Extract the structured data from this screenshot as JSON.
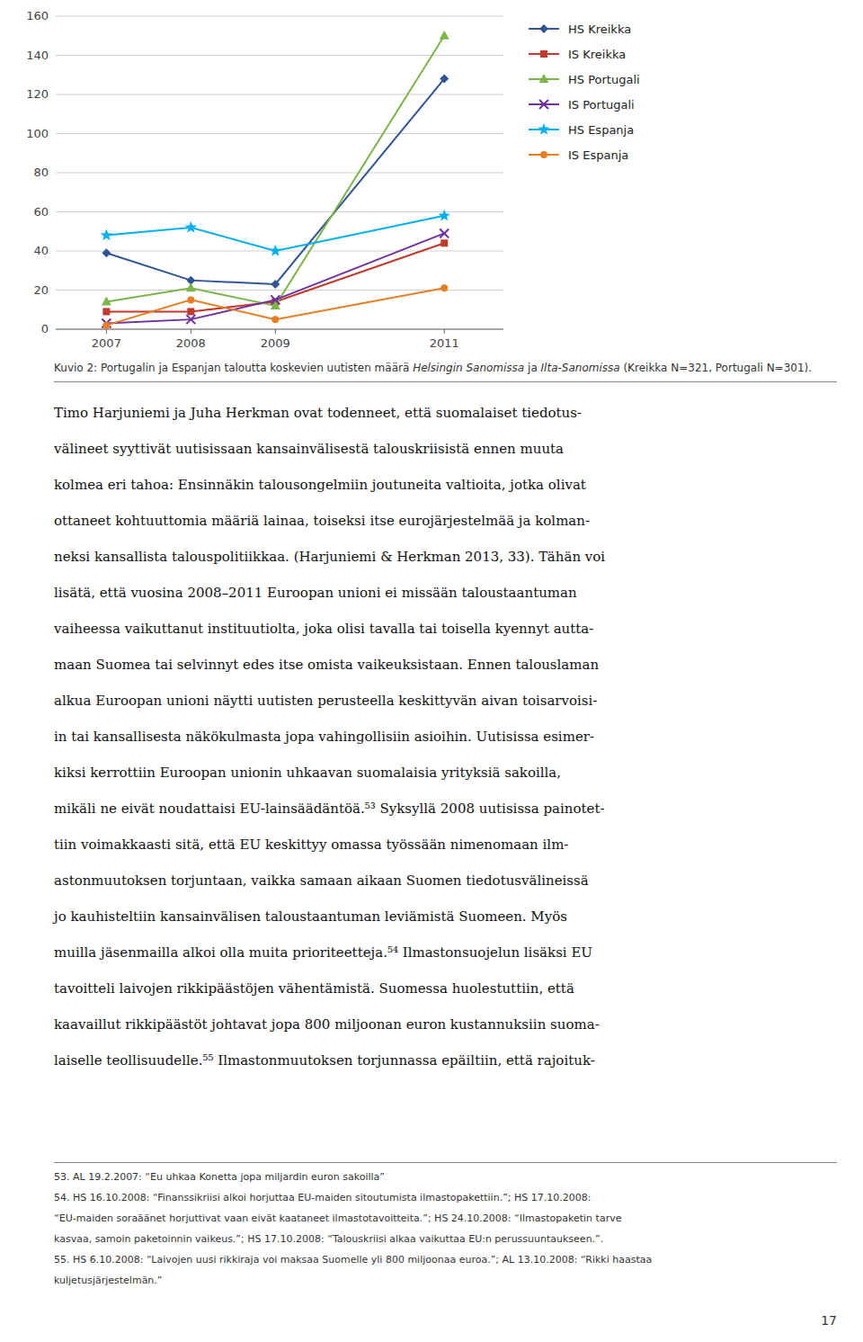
{
  "chart_data": {
    "type": "line",
    "x": [
      2007,
      2008,
      2009,
      2011
    ],
    "xlim": [
      2006.4,
      2011.7
    ],
    "xticks": [
      2007,
      2008,
      2009,
      2011
    ],
    "ylim": [
      0,
      160
    ],
    "yticks": [
      0,
      20,
      40,
      60,
      80,
      100,
      120,
      140,
      160
    ],
    "grid": true,
    "legend": "right",
    "series": [
      {
        "name": "HS Kreikka",
        "color": "#2F5597",
        "marker": "diamond",
        "values": [
          39,
          25,
          23,
          128
        ]
      },
      {
        "name": "IS Kreikka",
        "color": "#C0392B",
        "marker": "square",
        "values": [
          9,
          9,
          14,
          44
        ]
      },
      {
        "name": "HS Portugali",
        "color": "#7AB648",
        "marker": "triangle",
        "values": [
          14,
          21,
          12,
          150
        ]
      },
      {
        "name": "IS Portugali",
        "color": "#7030A0",
        "marker": "x",
        "values": [
          3,
          5,
          15,
          49
        ]
      },
      {
        "name": "HS Espanja",
        "color": "#00B0F0",
        "marker": "star",
        "values": [
          48,
          52,
          40,
          58
        ]
      },
      {
        "name": "IS Espanja",
        "color": "#E67E22",
        "marker": "circle",
        "values": [
          2,
          15,
          5,
          21
        ]
      }
    ]
  },
  "caption": [
    "Kuvio 2: Portugalin ja Espanjan taloutta koskevien uutisten määrä ",
    "Helsingin Sanomissa",
    " ja ",
    "Ilta-Sanomissa",
    " (Kreikka N=321, Portugali N=301)."
  ],
  "body_lines": [
    "Timo Harjuniemi ja Juha Herkman ovat todenneet, että suomalaiset tiedotus-",
    "välineet syyttivät uutisissaan kansainvälisestä talouskriisistä ennen muuta",
    "kolmea eri tahoa: Ensinnäkin talousongelmiin joutuneita valtioita, jotka olivat",
    "ottaneet kohtuuttomia määriä lainaa, toiseksi itse eurojärjestelmää ja kolman-",
    "neksi kansallista talouspolitiikkaa. (Harjuniemi & Herkman 2013, 33). Tähän voi",
    "lisätä, että vuosina 2008–2011 Euroopan unioni ei missään taloustaantuman",
    "vaiheessa vaikuttanut instituutiolta, joka olisi tavalla tai toisella kyennyt autta-",
    "maan Suomea tai selvinnyt edes itse omista vaikeuksistaan. Ennen talouslaman",
    "alkua Euroopan unioni näytti uutisten perusteella keskittyvän aivan toisarvoisi-",
    "in tai kansallisesta näkökulmasta jopa vahingollisiin asioihin. Uutisissa esimer-",
    "kiksi kerrottiin Euroopan unionin uhkaavan suomalaisia yrityksiä sakoilla,",
    "mikäli ne eivät noudattaisi EU-lainsäädäntöä.⁵³ Syksyllä 2008 uutisissa painotet-",
    "tiin voimakkaasti sitä, että EU keskittyy omassa työssään nimenomaan ilm-",
    "astonmuutoksen torjuntaan, vaikka samaan aikaan Suomen tiedotusvälineissä",
    "jo kauhisteltiin kansainvälisen taloustaantuman leviämistä Suomeen. Myös",
    "muilla jäsenmailla alkoi olla muita prioriteetteja.⁵⁴ Ilmastonsuojelun lisäksi EU",
    "tavoitteli laivojen rikkipäästöjen vähentämistä. Suomessa huolestuttiin, että",
    "kaavaillut rikkipäästöt johtavat jopa 800 miljoonan euron kustannuksiin suoma-",
    "laiselle teollisuudelle.⁵⁵ Ilmastonmuutoksen torjunnassa epäiltiin, että rajoituk-"
  ],
  "footnote_lines": [
    "53. AL 19.2.2007: “Eu uhkaa Konetta jopa miljardin euron sakoilla”",
    "54. HS 16.10.2008: “Finanssikriisi alkoi horjuttaa EU-maiden sitoutumista ilmastopakettiin.”; HS 17.10.2008:",
    "“EU-maiden soraäänet horjuttivat vaan eivät kaataneet ilmastotavoitteita.”; HS 24.10.2008: “Ilmastopaketin tarve",
    "kasvaa, samoin paketoinnin vaikeus.”; HS 17.10.2008: “Talouskriisi alkaa vaikuttaa EU:n perussuuntaukseen.”.",
    "55. HS 6.10.2008: “Laivojen uusi rikkiraja voi maksaa Suomelle yli 800 miljoonaa euroa.”; AL 13.10.2008: “Rikki haastaa",
    "kuljetusjärjestelmän.”"
  ],
  "page_number": "17"
}
